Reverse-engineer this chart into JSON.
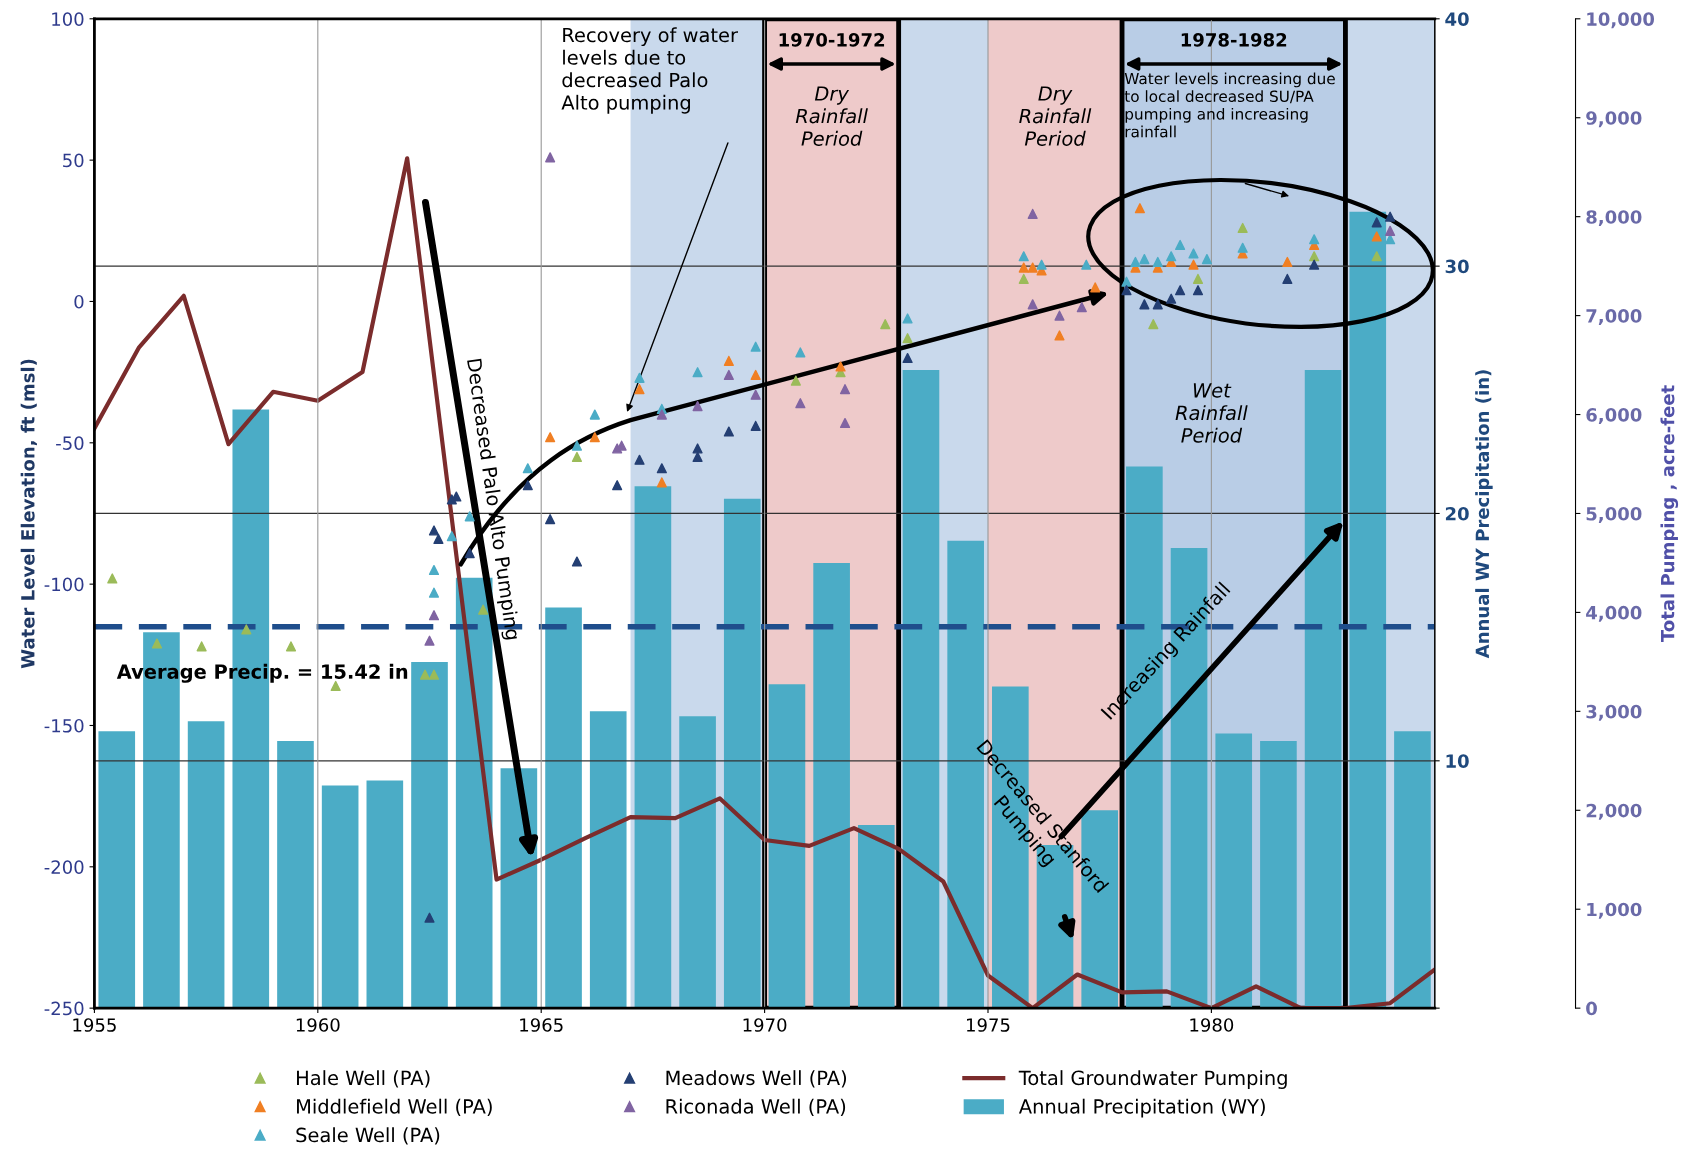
{
  "chart_data": {
    "type": "scatter",
    "ylabel": "Water Level Elevation, ft (msl)",
    "y2label": "Annual WY Precipitation (in)",
    "y3label": "Total Pumping , acre-feet",
    "xlim": [
      1955,
      1985
    ],
    "xticks": [
      1955,
      1960,
      1965,
      1970,
      1975,
      1980
    ],
    "ylim": [
      -250,
      100
    ],
    "yticks": [
      -250,
      -200,
      -150,
      -100,
      -50,
      0,
      50,
      100
    ],
    "y2lim": [
      0,
      40
    ],
    "y2ticks": [
      {
        "value": 0,
        "label": null
      },
      10,
      20,
      30,
      40
    ],
    "y3lim": [
      0,
      10000
    ],
    "y3ticks": [
      0,
      {
        "value": 1000,
        "label": "1,000"
      },
      {
        "value": 2000,
        "label": "2,000"
      },
      {
        "value": 3000,
        "label": "3,000"
      },
      {
        "value": 4000,
        "label": "4,000"
      },
      {
        "value": 5000,
        "label": "5,000"
      },
      {
        "value": 6000,
        "label": "6,000"
      },
      {
        "value": 7000,
        "label": "7,000"
      },
      {
        "value": 8000,
        "label": "8,000"
      },
      {
        "value": 9000,
        "label": "9,000"
      },
      {
        "value": 10000,
        "label": "10,000"
      }
    ],
    "grid": true,
    "legend": "bottom",
    "series": [
      {
        "name": "Hale Well (PA)",
        "type": "scatter",
        "marker": "triangle",
        "color": "#9bbb59",
        "x": [
          1955.4,
          1956.4,
          1957.4,
          1958.4,
          1959.4,
          1960.4,
          1962.4,
          1962.6,
          1963.7,
          1965.8,
          1970.7,
          1971.7,
          1972.7,
          1973.2,
          1975.8,
          1978.7,
          1979.7,
          1980.7,
          1982.3,
          1983.7
        ],
        "values": [
          -98,
          -121,
          -122,
          -116,
          -122,
          -136,
          -132,
          -132,
          -109,
          -55,
          -28,
          -25,
          -8,
          -13,
          8,
          -8,
          8,
          26,
          16,
          16
        ]
      },
      {
        "name": "Middlefield Well (PA)",
        "type": "scatter",
        "marker": "triangle",
        "color": "#f07f23",
        "x": [
          1965.2,
          1966.2,
          1967.2,
          1967.7,
          1969.2,
          1969.8,
          1971.7,
          1975.8,
          1976.0,
          1976.2,
          1976.6,
          1977.4,
          1978.3,
          1978.4,
          1978.8,
          1979.1,
          1979.6,
          1980.7,
          1981.7,
          1982.3,
          1983.7
        ],
        "values": [
          -48,
          -48,
          -31,
          -64,
          -21,
          -26,
          -23,
          12,
          12,
          11,
          -12,
          5,
          12,
          33,
          12,
          14,
          13,
          17,
          14,
          20,
          23
        ]
      },
      {
        "name": "Seale Well (PA)",
        "type": "scatter",
        "marker": "triangle",
        "color": "#4bacc6",
        "x": [
          1962.6,
          1962.6,
          1963.0,
          1963.4,
          1964.7,
          1965.8,
          1966.2,
          1967.2,
          1967.7,
          1968.5,
          1969.8,
          1970.8,
          1973.2,
          1975.8,
          1976.2,
          1977.2,
          1978.1,
          1978.3,
          1978.5,
          1978.8,
          1979.1,
          1979.3,
          1979.6,
          1979.9,
          1980.7,
          1982.3,
          1984.0
        ],
        "values": [
          -95,
          -103,
          -83,
          -76,
          -59,
          -51,
          -40,
          -27,
          -38,
          -25,
          -16,
          -18,
          -6,
          16,
          13,
          13,
          7,
          14,
          15,
          14,
          16,
          20,
          17,
          15,
          19,
          22,
          22
        ]
      },
      {
        "name": "Meadows Well (PA)",
        "type": "scatter",
        "marker": "triangle",
        "color": "#243f73",
        "x": [
          1962.5,
          1962.6,
          1962.7,
          1963.0,
          1963.1,
          1963.4,
          1964.7,
          1965.2,
          1965.8,
          1966.7,
          1967.2,
          1967.7,
          1968.5,
          1968.5,
          1969.2,
          1969.8,
          1973.2,
          1978.1,
          1978.5,
          1978.8,
          1979.1,
          1979.3,
          1979.7,
          1981.7,
          1982.3,
          1983.7,
          1984.0
        ],
        "values": [
          -218,
          -81,
          -84,
          -70,
          -69,
          -89,
          -65,
          -77,
          -92,
          -65,
          -56,
          -59,
          -52,
          -55,
          -46,
          -44,
          -20,
          4,
          -1,
          -1,
          1,
          4,
          4,
          8,
          13,
          28,
          30
        ]
      },
      {
        "name": "Riconada Well (PA)",
        "type": "scatter",
        "marker": "triangle",
        "color": "#8064a2",
        "x": [
          1962.5,
          1962.6,
          1965.2,
          1966.7,
          1966.8,
          1967.7,
          1968.5,
          1969.2,
          1969.8,
          1970.8,
          1971.8,
          1971.8,
          1976.0,
          1976.0,
          1976.6,
          1977.1,
          1984.0
        ],
        "values": [
          -120,
          -111,
          51,
          -52,
          -51,
          -40,
          -37,
          -26,
          -33,
          -36,
          -31,
          -43,
          31,
          -1,
          -5,
          -2,
          25
        ]
      },
      {
        "name": "Total Groundwater Pumping",
        "type": "line",
        "axis": "y3",
        "color": "#7b2c2c",
        "line_style": "solid",
        "x": [
          1955,
          1956,
          1957,
          1958,
          1959,
          1960,
          1961,
          1962,
          1964,
          1965,
          1966,
          1967,
          1968,
          1969,
          1970,
          1971,
          1972,
          1973,
          1974,
          1975,
          1976,
          1977,
          1978,
          1979,
          1980,
          1981,
          1982,
          1983,
          1984,
          1985
        ],
        "values": [
          5860,
          6680,
          7200,
          5700,
          6230,
          6140,
          6430,
          8590,
          1300,
          1500,
          1720,
          1930,
          1920,
          2120,
          1700,
          1640,
          1820,
          1610,
          1280,
          330,
          0,
          340,
          160,
          170,
          0,
          220,
          0,
          0,
          50,
          390
        ]
      },
      {
        "name": "Annual Precipitation (WY)",
        "type": "bar",
        "axis": "y2",
        "color": "#4bacc6",
        "x": [
          1955.5,
          1956.5,
          1957.5,
          1958.5,
          1959.5,
          1960.5,
          1961.5,
          1962.5,
          1963.5,
          1964.5,
          1965.5,
          1966.5,
          1967.5,
          1968.5,
          1969.5,
          1970.5,
          1971.5,
          1972.5,
          1973.5,
          1974.5,
          1975.5,
          1976.5,
          1977.5,
          1978.5,
          1979.5,
          1980.5,
          1981.5,
          1982.5,
          1983.5,
          1984.5
        ],
        "values": [
          11.2,
          15.2,
          11.6,
          24.2,
          10.8,
          9.0,
          9.2,
          14.0,
          17.4,
          9.7,
          16.2,
          12.0,
          21.1,
          11.8,
          20.6,
          13.1,
          18.0,
          7.4,
          25.8,
          18.9,
          13.0,
          6.6,
          8.0,
          21.9,
          18.6,
          11.1,
          10.8,
          25.8,
          32.2,
          11.2
        ]
      }
    ],
    "ref_lines": [
      {
        "axis": "y2",
        "value": 15.42,
        "label": "Average Precip. = 15.42 in",
        "color": "#1f4e8c",
        "line_style": "dashed"
      }
    ],
    "bands": [
      {
        "axis": "x",
        "from": 1967,
        "to": 1985,
        "color": "#c9d9ec"
      },
      {
        "axis": "x",
        "from": 1970,
        "to": 1973,
        "color": "#eecaca",
        "label": "1970-1972"
      },
      {
        "axis": "x",
        "from": 1975,
        "to": 1978,
        "color": "#eecaca"
      },
      {
        "axis": "x",
        "from": 1978,
        "to": 1983,
        "color": "#b9cde6",
        "label": "1978-1982"
      }
    ],
    "annotations": [
      "Recovery of water\nlevels due to\ndecreased Palo\nAlto pumping",
      "Decreased Palo Alto Pumping",
      {
        "text": "Decreased Stanford\nPumping",
        "x": 1976.9,
        "y": -226
      },
      "Increasing Rainfall",
      "Water levels increasing due\nto local decreased SU/PA\npumping and increasing\nrainfall",
      "Wet\nRainfall\nPeriod",
      "Dry\nRainfall\nPeriod",
      "Dry\nRainfall\nPeriod"
    ]
  }
}
